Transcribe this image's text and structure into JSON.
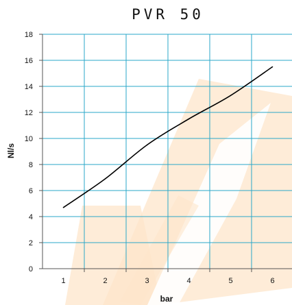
{
  "chart_data": {
    "type": "line",
    "title": "PVR 50",
    "xlabel": "bar",
    "ylabel": "Nl/s",
    "xlim": [
      0.5,
      6.5
    ],
    "ylim": [
      0,
      18
    ],
    "x_ticks": [
      "1",
      "2",
      "3",
      "4",
      "5",
      "6"
    ],
    "y_ticks": [
      "0",
      "2",
      "4",
      "6",
      "8",
      "10",
      "12",
      "14",
      "16",
      "18"
    ],
    "grid": true,
    "series": [
      {
        "color": "#000000",
        "x": [
          1,
          2,
          3,
          4,
          5,
          6
        ],
        "y": [
          4.7,
          6.9,
          9.5,
          11.5,
          13.3,
          15.5
        ]
      }
    ]
  },
  "colors": {
    "grid": "#2aa7c9",
    "watermark": "#fde5c8",
    "axis": "#555555"
  }
}
